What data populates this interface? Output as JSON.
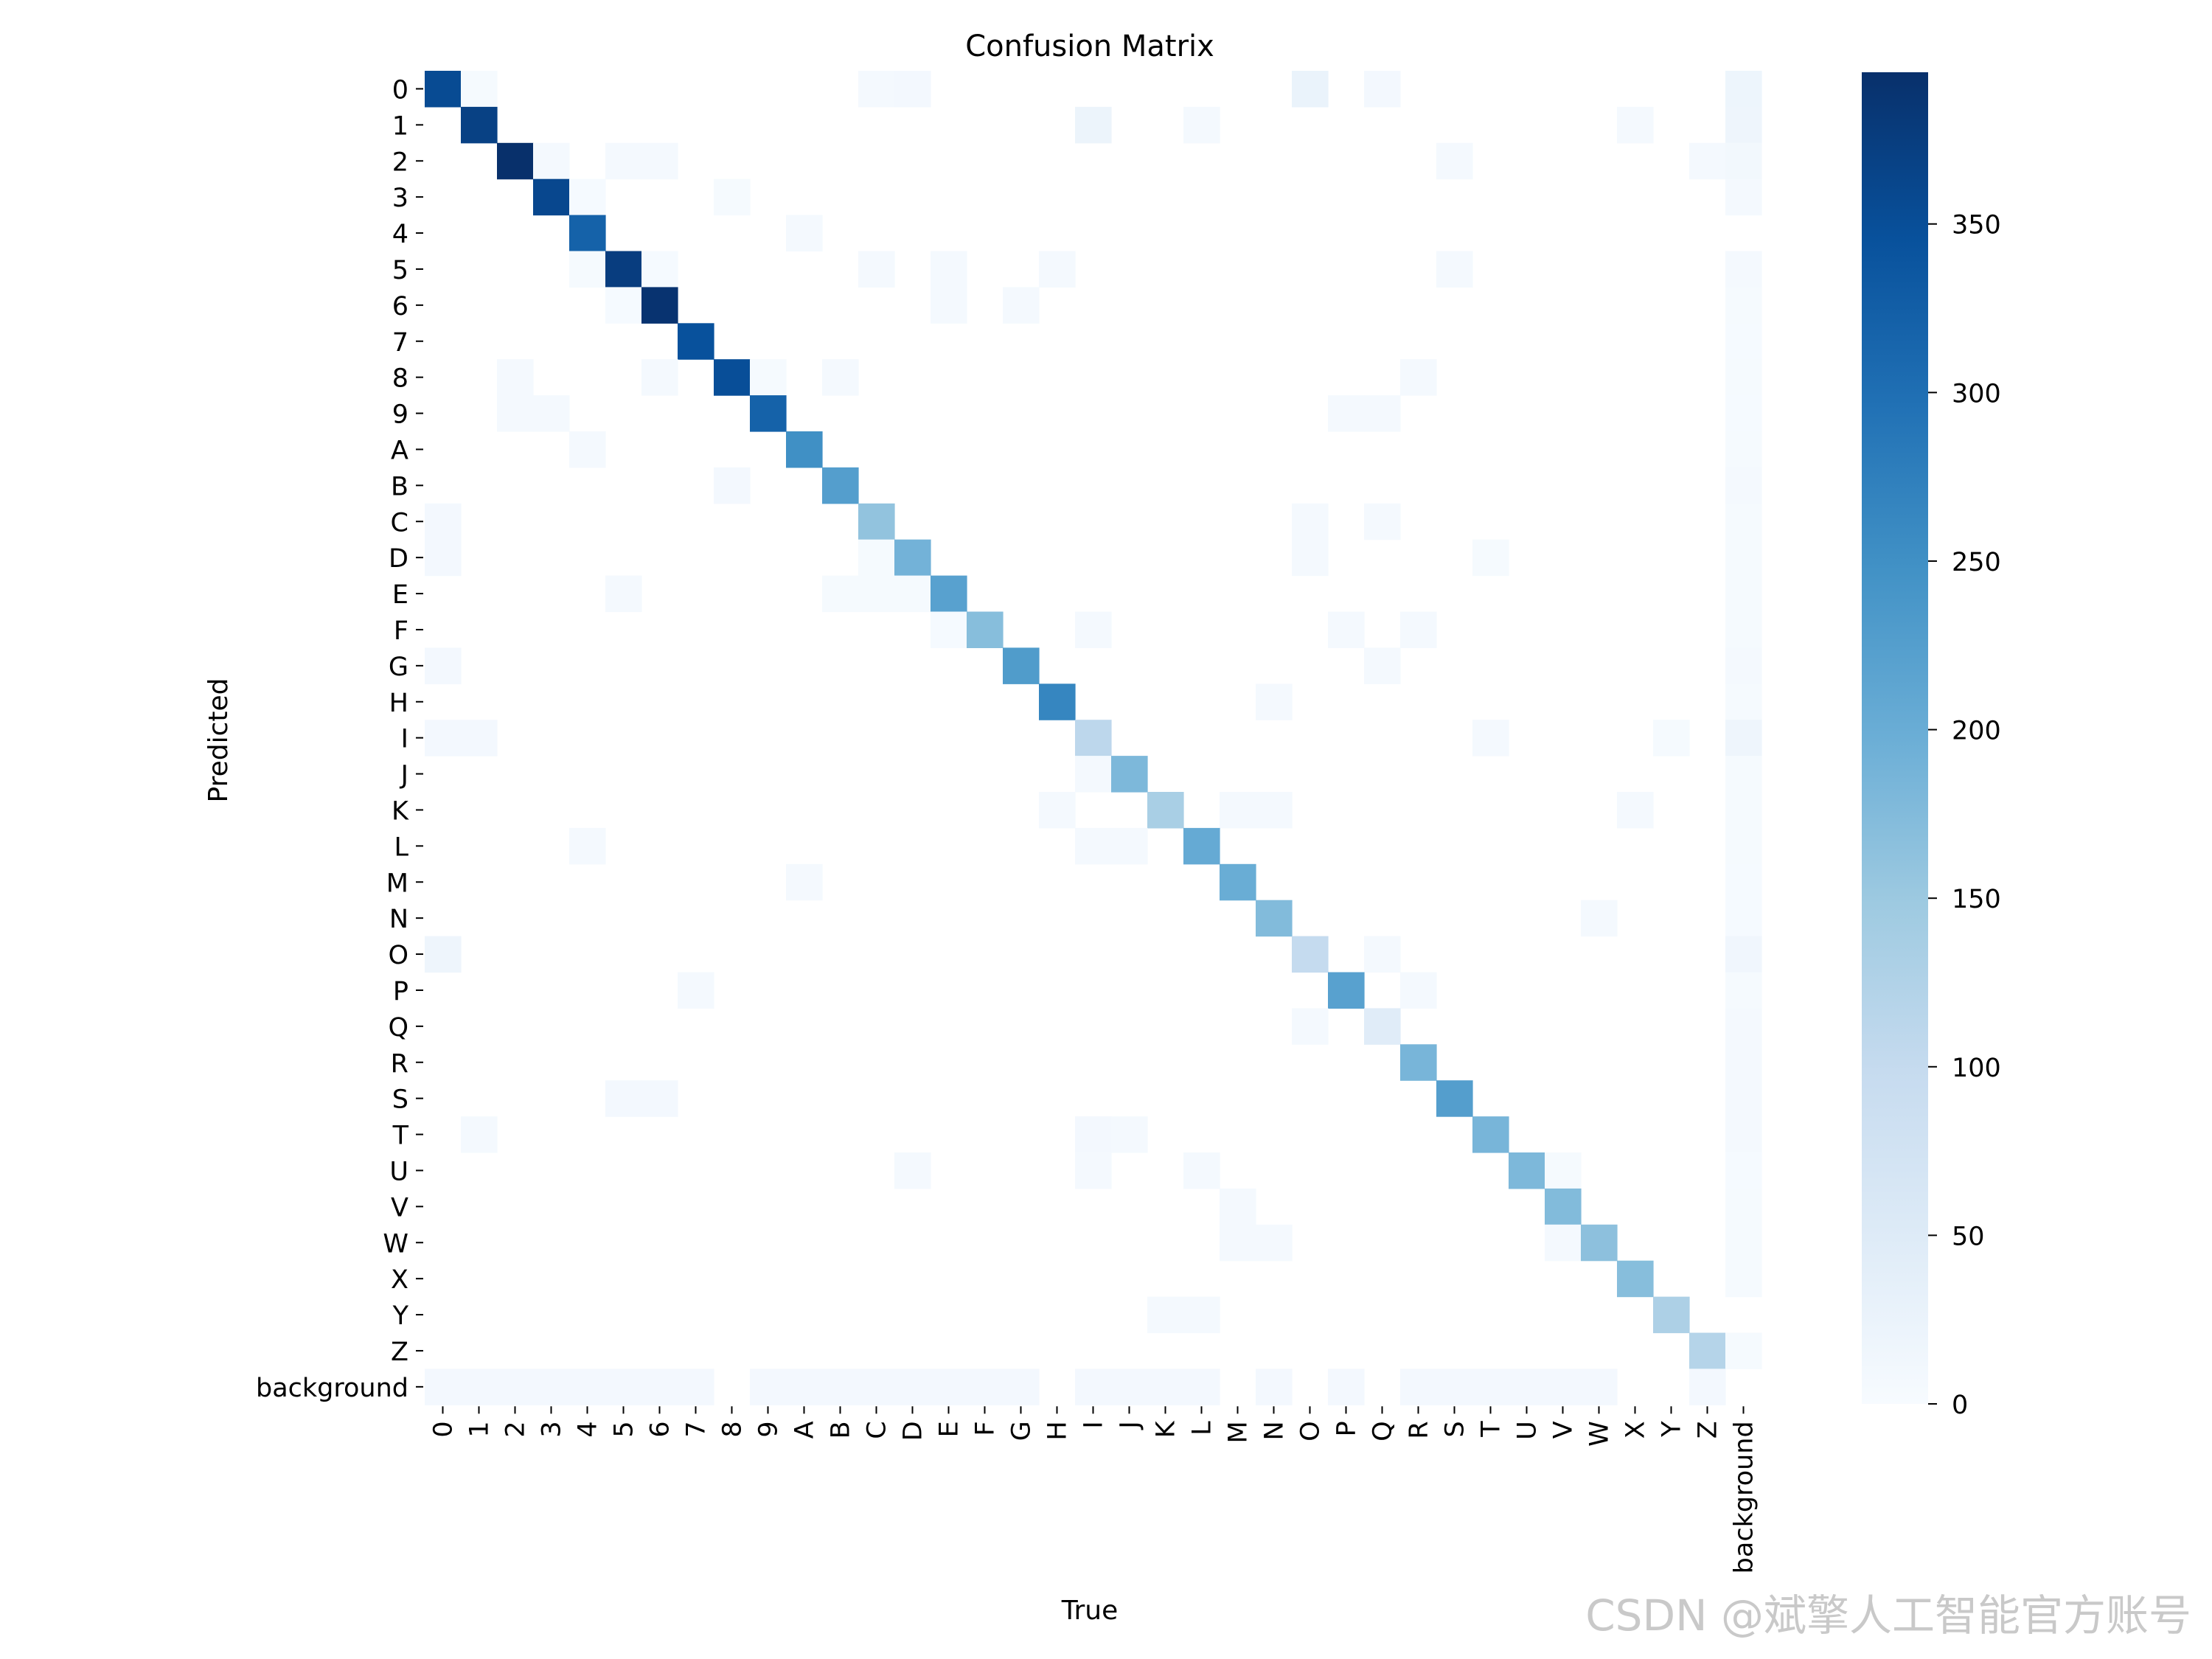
{
  "chart_data": {
    "type": "heatmap",
    "title": "Confusion Matrix",
    "xlabel": "True",
    "ylabel": "Predicted",
    "labels": [
      "0",
      "1",
      "2",
      "3",
      "4",
      "5",
      "6",
      "7",
      "8",
      "9",
      "A",
      "B",
      "C",
      "D",
      "E",
      "F",
      "G",
      "H",
      "I",
      "J",
      "K",
      "L",
      "M",
      "N",
      "O",
      "P",
      "Q",
      "R",
      "S",
      "T",
      "U",
      "V",
      "W",
      "X",
      "Y",
      "Z",
      "background"
    ],
    "colorscale": "Blues",
    "vmin": 0,
    "vmax": 395,
    "colorbar_ticks": [
      0,
      50,
      100,
      150,
      200,
      250,
      300,
      350
    ],
    "diagonal": [
      355,
      370,
      395,
      360,
      320,
      375,
      390,
      345,
      350,
      320,
      250,
      225,
      160,
      190,
      220,
      170,
      230,
      265,
      110,
      180,
      135,
      205,
      200,
      175,
      100,
      220,
      45,
      185,
      225,
      185,
      180,
      175,
      165,
      170,
      130,
      120,
      0
    ],
    "off_diagonal": [
      [
        0,
        1,
        4
      ],
      [
        0,
        12,
        6
      ],
      [
        0,
        13,
        8
      ],
      [
        0,
        24,
        25
      ],
      [
        0,
        26,
        8
      ],
      [
        0,
        36,
        20
      ],
      [
        1,
        18,
        22
      ],
      [
        1,
        21,
        6
      ],
      [
        1,
        33,
        6
      ],
      [
        1,
        36,
        18
      ],
      [
        2,
        3,
        5
      ],
      [
        2,
        5,
        5
      ],
      [
        2,
        6,
        5
      ],
      [
        2,
        28,
        6
      ],
      [
        2,
        35,
        6
      ],
      [
        2,
        36,
        10
      ],
      [
        3,
        4,
        3
      ],
      [
        3,
        8,
        4
      ],
      [
        3,
        36,
        6
      ],
      [
        4,
        10,
        5
      ],
      [
        5,
        4,
        4
      ],
      [
        5,
        6,
        3
      ],
      [
        5,
        12,
        5
      ],
      [
        5,
        14,
        6
      ],
      [
        5,
        17,
        5
      ],
      [
        5,
        28,
        6
      ],
      [
        5,
        36,
        6
      ],
      [
        6,
        5,
        3
      ],
      [
        6,
        14,
        5
      ],
      [
        6,
        16,
        5
      ],
      [
        6,
        36,
        4
      ],
      [
        7,
        36,
        3
      ],
      [
        8,
        2,
        5
      ],
      [
        8,
        6,
        5
      ],
      [
        8,
        9,
        4
      ],
      [
        8,
        11,
        5
      ],
      [
        8,
        27,
        6
      ],
      [
        8,
        36,
        4
      ],
      [
        9,
        2,
        5
      ],
      [
        9,
        3,
        5
      ],
      [
        9,
        25,
        5
      ],
      [
        9,
        26,
        5
      ],
      [
        9,
        36,
        3
      ],
      [
        10,
        4,
        6
      ],
      [
        10,
        36,
        4
      ],
      [
        11,
        8,
        8
      ],
      [
        11,
        36,
        6
      ],
      [
        12,
        0,
        8
      ],
      [
        12,
        24,
        6
      ],
      [
        12,
        26,
        6
      ],
      [
        12,
        36,
        4
      ],
      [
        13,
        0,
        8
      ],
      [
        13,
        12,
        4
      ],
      [
        13,
        24,
        6
      ],
      [
        13,
        29,
        4
      ],
      [
        13,
        36,
        4
      ],
      [
        14,
        5,
        6
      ],
      [
        14,
        11,
        4
      ],
      [
        14,
        12,
        4
      ],
      [
        14,
        13,
        4
      ],
      [
        14,
        36,
        4
      ],
      [
        15,
        14,
        3
      ],
      [
        15,
        18,
        5
      ],
      [
        15,
        25,
        5
      ],
      [
        15,
        27,
        6
      ],
      [
        15,
        36,
        4
      ],
      [
        16,
        0,
        8
      ],
      [
        16,
        26,
        6
      ],
      [
        16,
        36,
        6
      ],
      [
        17,
        23,
        5
      ],
      [
        17,
        36,
        4
      ],
      [
        18,
        0,
        8
      ],
      [
        18,
        1,
        8
      ],
      [
        18,
        29,
        5
      ],
      [
        18,
        34,
        4
      ],
      [
        18,
        36,
        18
      ],
      [
        19,
        18,
        6
      ],
      [
        19,
        36,
        4
      ],
      [
        20,
        17,
        5
      ],
      [
        20,
        22,
        5
      ],
      [
        20,
        23,
        5
      ],
      [
        20,
        33,
        6
      ],
      [
        20,
        36,
        4
      ],
      [
        21,
        4,
        5
      ],
      [
        21,
        18,
        6
      ],
      [
        21,
        19,
        6
      ],
      [
        21,
        36,
        4
      ],
      [
        22,
        10,
        5
      ],
      [
        22,
        36,
        3
      ],
      [
        23,
        32,
        5
      ],
      [
        23,
        36,
        3
      ],
      [
        24,
        0,
        18
      ],
      [
        24,
        26,
        6
      ],
      [
        24,
        36,
        14
      ],
      [
        25,
        7,
        5
      ],
      [
        25,
        27,
        5
      ],
      [
        25,
        36,
        4
      ],
      [
        26,
        24,
        5
      ],
      [
        26,
        36,
        6
      ],
      [
        27,
        36,
        6
      ],
      [
        28,
        5,
        8
      ],
      [
        28,
        6,
        8
      ],
      [
        28,
        36,
        6
      ],
      [
        29,
        1,
        6
      ],
      [
        29,
        18,
        8
      ],
      [
        29,
        19,
        6
      ],
      [
        29,
        36,
        6
      ],
      [
        30,
        13,
        5
      ],
      [
        30,
        18,
        5
      ],
      [
        30,
        21,
        5
      ],
      [
        30,
        31,
        4
      ],
      [
        30,
        36,
        3
      ],
      [
        31,
        22,
        5
      ],
      [
        31,
        36,
        4
      ],
      [
        32,
        22,
        6
      ],
      [
        32,
        23,
        6
      ],
      [
        32,
        31,
        5
      ],
      [
        32,
        36,
        4
      ],
      [
        33,
        36,
        4
      ],
      [
        34,
        20,
        6
      ],
      [
        34,
        21,
        6
      ],
      [
        35,
        36,
        4
      ],
      [
        36,
        0,
        8
      ],
      [
        36,
        1,
        8
      ],
      [
        36,
        2,
        8
      ],
      [
        36,
        3,
        8
      ],
      [
        36,
        4,
        8
      ],
      [
        36,
        5,
        8
      ],
      [
        36,
        6,
        8
      ],
      [
        36,
        7,
        8
      ],
      [
        36,
        9,
        8
      ],
      [
        36,
        10,
        8
      ],
      [
        36,
        11,
        8
      ],
      [
        36,
        12,
        8
      ],
      [
        36,
        13,
        8
      ],
      [
        36,
        14,
        8
      ],
      [
        36,
        15,
        8
      ],
      [
        36,
        16,
        8
      ],
      [
        36,
        18,
        8
      ],
      [
        36,
        19,
        8
      ],
      [
        36,
        20,
        8
      ],
      [
        36,
        21,
        8
      ],
      [
        36,
        23,
        8
      ],
      [
        36,
        25,
        8
      ],
      [
        36,
        27,
        8
      ],
      [
        36,
        28,
        8
      ],
      [
        36,
        29,
        8
      ],
      [
        36,
        30,
        8
      ],
      [
        36,
        31,
        8
      ],
      [
        36,
        32,
        8
      ],
      [
        36,
        35,
        8
      ]
    ]
  },
  "watermark": "CSDN @斌擎人工智能官方账号"
}
